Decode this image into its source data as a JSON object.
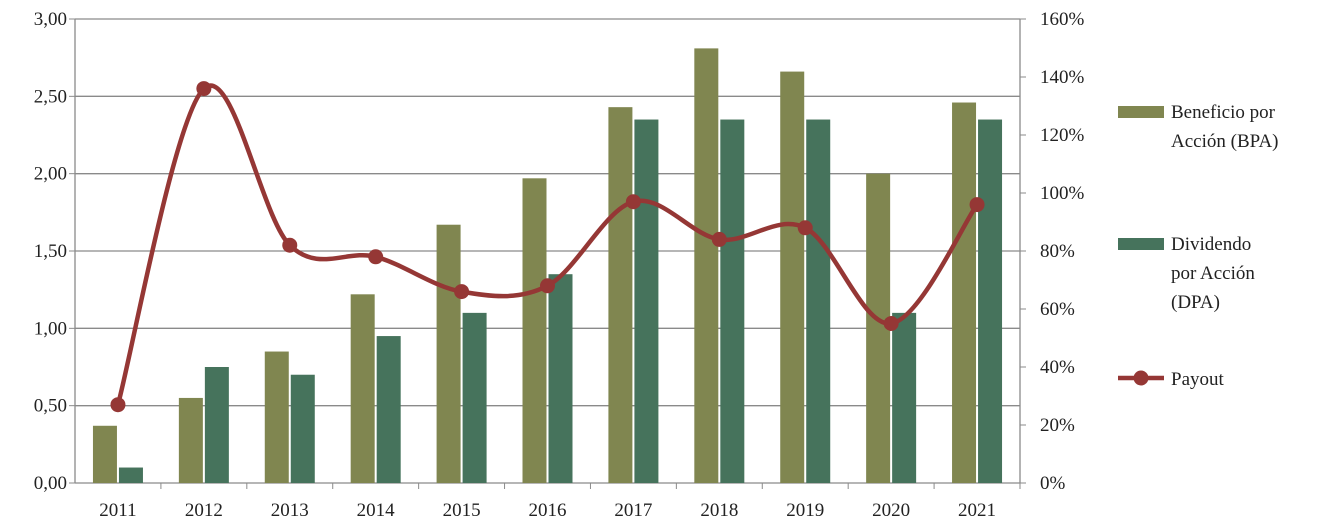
{
  "chart_data": {
    "type": "bar",
    "categories": [
      "2011",
      "2012",
      "2013",
      "2014",
      "2015",
      "2016",
      "2017",
      "2018",
      "2019",
      "2020",
      "2021"
    ],
    "series": [
      {
        "name": "Beneficio por Acción (BPA)",
        "legend_lines": [
          "Beneficio por",
          "Acción (BPA)"
        ],
        "type": "bar",
        "axis": "left",
        "color": "#808650",
        "values": [
          0.37,
          0.55,
          0.85,
          1.22,
          1.67,
          1.97,
          2.43,
          2.81,
          2.66,
          2.0,
          2.46
        ]
      },
      {
        "name": "Dividendo por Acción (DPA)",
        "legend_lines": [
          "Dividendo",
          "por Acción",
          "(DPA)"
        ],
        "type": "bar",
        "axis": "left",
        "color": "#46735C",
        "values": [
          0.1,
          0.75,
          0.7,
          0.95,
          1.1,
          1.35,
          2.35,
          2.35,
          2.35,
          1.1,
          2.35
        ]
      },
      {
        "name": "Payout",
        "legend_lines": [
          "Payout"
        ],
        "type": "line",
        "axis": "right",
        "color": "#953735",
        "values": [
          27,
          136,
          82,
          78,
          66,
          68,
          97,
          84,
          88,
          55,
          96
        ]
      }
    ],
    "y_left": {
      "ylim": [
        0,
        3
      ],
      "ticks": [
        "0,00",
        "0,50",
        "1,00",
        "1,50",
        "2,00",
        "2,50",
        "3,00"
      ]
    },
    "y_right": {
      "ylim": [
        0,
        160
      ],
      "ticks": [
        "0%",
        "20%",
        "40%",
        "60%",
        "80%",
        "100%",
        "120%",
        "140%",
        "160%"
      ]
    },
    "grid": true,
    "legend_position": "right"
  }
}
